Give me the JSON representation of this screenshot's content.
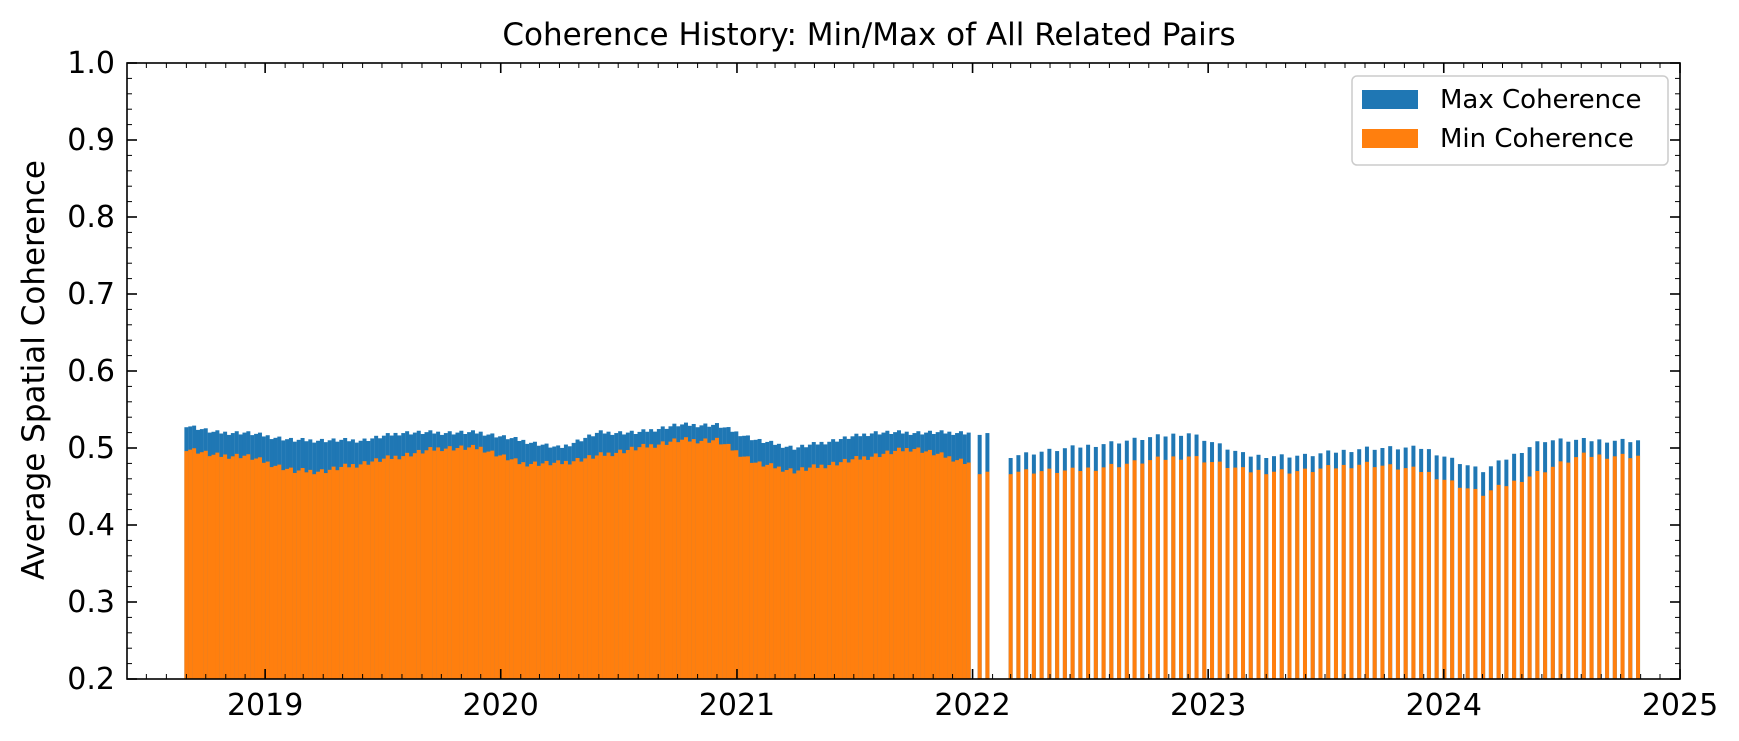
{
  "chart_data": {
    "type": "bar",
    "title": "Coherence History: Min/Max of All Related Pairs",
    "xlabel": "",
    "ylabel": "Average Spatial Coherence",
    "xlim": [
      "2018-06-01",
      "2025-01-01"
    ],
    "ylim": [
      0.2,
      1.0
    ],
    "yticks": [
      "0.2",
      "0.3",
      "0.4",
      "0.5",
      "0.6",
      "0.7",
      "0.8",
      "0.9",
      "1.0"
    ],
    "xticks": [
      "2019",
      "2020",
      "2021",
      "2022",
      "2023",
      "2024",
      "2025"
    ],
    "grid": false,
    "legend_position": "top-right",
    "series": [
      {
        "name": "Max Coherence",
        "color": "#1f77b4"
      },
      {
        "name": "Min Coherence",
        "color": "#ff7f0e"
      }
    ],
    "segments": [
      {
        "start": "2018-09-01",
        "end": "2021-12-31",
        "interval_days": 6,
        "anchors": [
          [
            "2018-09-01",
            0.53,
            0.5
          ],
          [
            "2018-10-15",
            0.52,
            0.49
          ],
          [
            "2018-12-01",
            0.52,
            0.49
          ],
          [
            "2019-02-15",
            0.51,
            0.47
          ],
          [
            "2019-04-01",
            0.51,
            0.47
          ],
          [
            "2019-06-01",
            0.51,
            0.48
          ],
          [
            "2019-08-01",
            0.52,
            0.49
          ],
          [
            "2019-10-01",
            0.52,
            0.5
          ],
          [
            "2019-12-01",
            0.52,
            0.5
          ],
          [
            "2020-02-01",
            0.51,
            0.48
          ],
          [
            "2020-04-01",
            0.5,
            0.48
          ],
          [
            "2020-06-01",
            0.52,
            0.49
          ],
          [
            "2020-08-01",
            0.52,
            0.5
          ],
          [
            "2020-10-01",
            0.53,
            0.51
          ],
          [
            "2020-12-01",
            0.53,
            0.51
          ],
          [
            "2021-02-01",
            0.51,
            0.48
          ],
          [
            "2021-04-01",
            0.5,
            0.47
          ],
          [
            "2021-06-01",
            0.51,
            0.48
          ],
          [
            "2021-08-01",
            0.52,
            0.49
          ],
          [
            "2021-10-01",
            0.52,
            0.5
          ],
          [
            "2021-12-31",
            0.52,
            0.48
          ]
        ]
      },
      {
        "start": "2022-01-12",
        "end": "2022-01-30",
        "interval_days": 12,
        "anchors": [
          [
            "2022-01-12",
            0.52,
            0.47
          ],
          [
            "2022-01-30",
            0.52,
            0.47
          ]
        ]
      },
      {
        "start": "2022-03-01",
        "end": "2024-10-30",
        "interval_days": 12,
        "anchors": [
          [
            "2022-03-01",
            0.49,
            0.47
          ],
          [
            "2022-06-01",
            0.5,
            0.47
          ],
          [
            "2022-09-01",
            0.51,
            0.48
          ],
          [
            "2022-12-01",
            0.52,
            0.49
          ],
          [
            "2023-03-01",
            0.49,
            0.47
          ],
          [
            "2023-06-01",
            0.49,
            0.47
          ],
          [
            "2023-09-01",
            0.5,
            0.48
          ],
          [
            "2023-12-01",
            0.5,
            0.47
          ],
          [
            "2024-03-01",
            0.47,
            0.44
          ],
          [
            "2024-06-01",
            0.51,
            0.47
          ],
          [
            "2024-08-01",
            0.51,
            0.49
          ],
          [
            "2024-10-30",
            0.51,
            0.49
          ]
        ]
      }
    ]
  }
}
